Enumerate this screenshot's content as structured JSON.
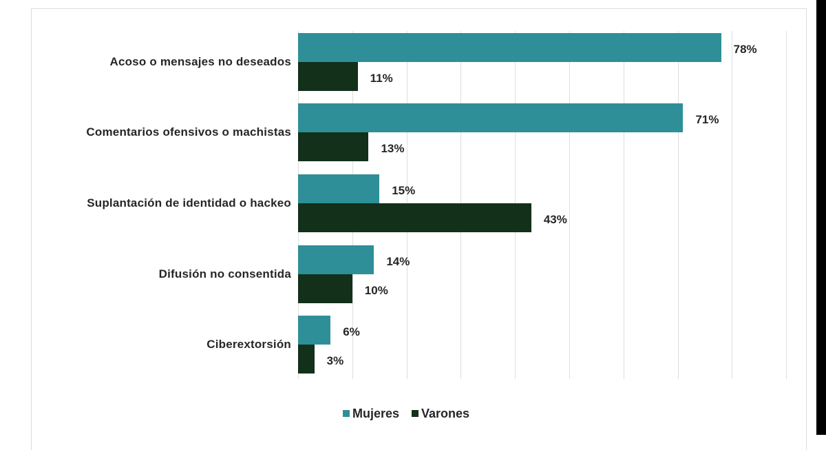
{
  "chart_data": {
    "type": "bar",
    "orientation": "horizontal",
    "title": "",
    "xlabel": "",
    "ylabel": "",
    "xlim": [
      0,
      90
    ],
    "grid": true,
    "gridline_step": 10,
    "legend_position": "bottom",
    "categories": [
      "Acoso o mensajes no deseados",
      "Comentarios ofensivos o machistas",
      "Suplantación de identidad o hackeo",
      "Difusión no consentida",
      "Ciberextorsión"
    ],
    "series": [
      {
        "name": "Mujeres",
        "color": "#2e8f98",
        "values": [
          78,
          71,
          15,
          14,
          6
        ],
        "labels": [
          "78%",
          "71%",
          "15%",
          "14%",
          "6%"
        ]
      },
      {
        "name": "Varones",
        "color": "#12301a",
        "values": [
          11,
          13,
          43,
          10,
          3
        ],
        "labels": [
          "11%",
          "13%",
          "43%",
          "10%",
          "3%"
        ]
      }
    ]
  },
  "legend": {
    "items": [
      {
        "label": "Mujeres",
        "color": "#2e8f98"
      },
      {
        "label": "Varones",
        "color": "#12301a"
      }
    ]
  }
}
